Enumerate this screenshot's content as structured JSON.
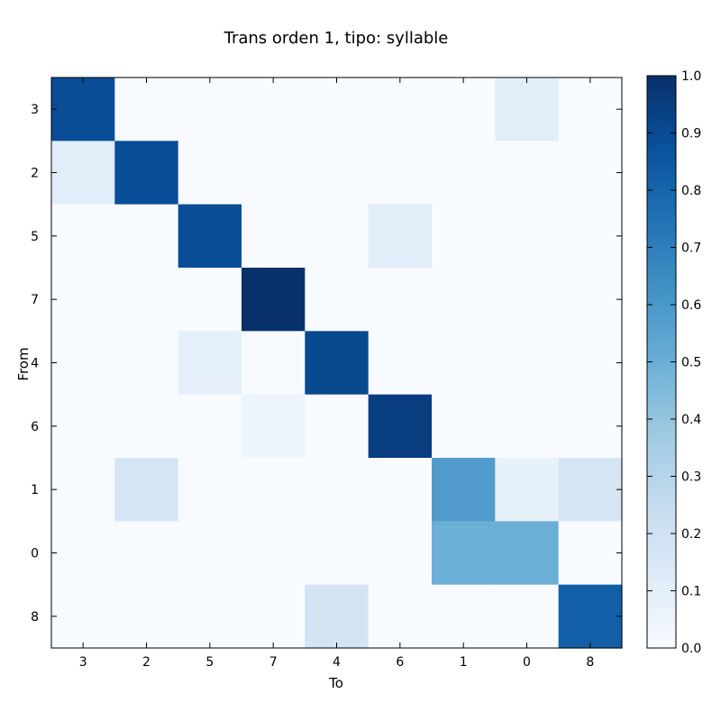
{
  "chart_data": {
    "type": "heatmap",
    "title": "Trans orden 1, tipo: syllable",
    "xlabel": "To",
    "ylabel": "From",
    "x_categories": [
      "3",
      "2",
      "5",
      "7",
      "4",
      "6",
      "1",
      "0",
      "8"
    ],
    "y_categories": [
      "3",
      "2",
      "5",
      "7",
      "4",
      "6",
      "1",
      "0",
      "8"
    ],
    "values": [
      [
        0.89,
        0.0,
        0.0,
        0.0,
        0.0,
        0.0,
        0.0,
        0.11,
        0.0
      ],
      [
        0.11,
        0.89,
        0.0,
        0.0,
        0.0,
        0.0,
        0.0,
        0.0,
        0.0
      ],
      [
        0.0,
        0.0,
        0.89,
        0.0,
        0.0,
        0.11,
        0.0,
        0.0,
        0.0
      ],
      [
        0.0,
        0.0,
        0.0,
        1.0,
        0.0,
        0.0,
        0.0,
        0.0,
        0.0
      ],
      [
        0.0,
        0.0,
        0.09,
        0.0,
        0.91,
        0.0,
        0.0,
        0.0,
        0.0
      ],
      [
        0.0,
        0.0,
        0.0,
        0.05,
        0.0,
        0.95,
        0.0,
        0.0,
        0.0
      ],
      [
        0.0,
        0.17,
        0.0,
        0.0,
        0.0,
        0.0,
        0.58,
        0.08,
        0.17
      ],
      [
        0.0,
        0.0,
        0.0,
        0.0,
        0.0,
        0.0,
        0.5,
        0.5,
        0.0
      ],
      [
        0.0,
        0.0,
        0.0,
        0.0,
        0.18,
        0.0,
        0.0,
        0.0,
        0.82
      ]
    ],
    "colormap": "Blues",
    "colorbar": {
      "range": [
        0.0,
        1.0
      ],
      "ticks": [
        "0.0",
        "0.1",
        "0.2",
        "0.3",
        "0.4",
        "0.5",
        "0.6",
        "0.7",
        "0.8",
        "0.9",
        "1.0"
      ]
    },
    "grid": false
  }
}
